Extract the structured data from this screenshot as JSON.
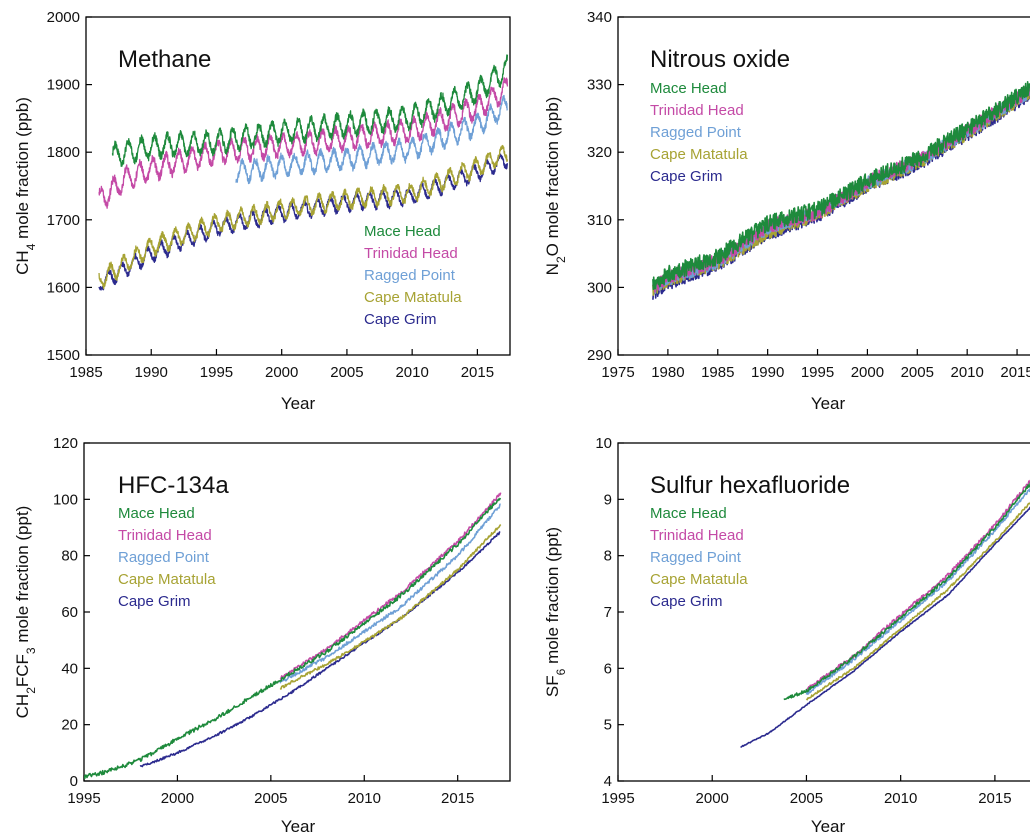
{
  "colors": {
    "Mace Head": "#1e8a3c",
    "Trinidad Head": "#c44aa6",
    "Ragged Point": "#6fa0d6",
    "Cape Matatula": "#a7a334",
    "Cape Grim": "#2b2a8e"
  },
  "chart_data": [
    {
      "type": "line",
      "title": "Methane",
      "xlabel": "Year",
      "ylabel": "CH4 mole fraction (ppb)",
      "ylabel_base": "CH",
      "ylabel_sub": "4",
      "ylabel_rest": " mole fraction (ppb)",
      "xlim": [
        1985,
        2017.5
      ],
      "ylim": [
        1500,
        2000
      ],
      "xticks": [
        1985,
        1990,
        1995,
        2000,
        2005,
        2010,
        2015
      ],
      "yticks": [
        1500,
        1600,
        1700,
        1800,
        1900,
        2000
      ],
      "grid": false,
      "legend": "lower-right",
      "seasonal": true,
      "series": [
        {
          "name": "Mace Head",
          "x": [
            1987.0,
            1990.0,
            1995.0,
            2000.0,
            2005.0,
            2010.0,
            2015.0,
            2017.3
          ],
          "values": [
            1795,
            1808,
            1815,
            1830,
            1840,
            1852,
            1890,
            1925
          ],
          "amp": 15
        },
        {
          "name": "Trinidad Head",
          "x": [
            1986.0,
            1988.0,
            1990.0,
            1995.0,
            2000.0,
            2005.0,
            2010.0,
            2015.0,
            2017.3
          ],
          "values": [
            1728,
            1760,
            1775,
            1800,
            1810,
            1820,
            1832,
            1865,
            1895
          ],
          "amp": 15
        },
        {
          "name": "Ragged Point",
          "x": [
            1996.5,
            2000.0,
            2005.0,
            2010.0,
            2015.0,
            2017.3
          ],
          "values": [
            1770,
            1780,
            1790,
            1805,
            1840,
            1870
          ],
          "amp": 14
        },
        {
          "name": "Cape Matatula",
          "x": [
            1986.0,
            1990.0,
            1995.0,
            2000.0,
            2005.0,
            2010.0,
            2015.0,
            2017.3
          ],
          "values": [
            1610,
            1660,
            1695,
            1715,
            1730,
            1740,
            1778,
            1800
          ],
          "amp": 12
        },
        {
          "name": "Cape Grim",
          "x": [
            1986.0,
            1990.0,
            1995.0,
            2000.0,
            2005.0,
            2010.0,
            2015.0,
            2017.3
          ],
          "values": [
            1605,
            1650,
            1688,
            1710,
            1725,
            1735,
            1770,
            1790
          ],
          "amp": 11
        }
      ]
    },
    {
      "type": "line",
      "title": "Nitrous oxide",
      "xlabel": "Year",
      "ylabel": "N2O mole fraction (ppb)",
      "ylabel_base": "N",
      "ylabel_sub": "2",
      "ylabel_rest": "O mole fraction (ppb)",
      "xlim": [
        1975,
        2017.5
      ],
      "ylim": [
        290,
        340
      ],
      "xticks": [
        1975,
        1980,
        1985,
        1990,
        1995,
        2000,
        2005,
        2010,
        2015
      ],
      "yticks": [
        290,
        300,
        310,
        320,
        330,
        340
      ],
      "grid": false,
      "legend": "top-left",
      "seasonal": false,
      "series": [
        {
          "name": "Mace Head",
          "x": [
            1978.5,
            1980.0,
            1985.0,
            1990.0,
            1995.0,
            2000.0,
            2005.0,
            2010.0,
            2015.0,
            2017.3
          ],
          "values": [
            300.5,
            302.0,
            304.5,
            309.5,
            311.5,
            315.8,
            319.0,
            323.4,
            328.2,
            330.5
          ],
          "amp": 1.2
        },
        {
          "name": "Trinidad Head",
          "x": [
            1978.5,
            1980.0,
            1985.0,
            1990.0,
            1995.0,
            2000.0,
            2005.0,
            2010.0,
            2015.0,
            2017.3
          ],
          "values": [
            300.0,
            301.5,
            304.0,
            309.0,
            311.0,
            315.6,
            318.8,
            323.2,
            328.0,
            330.2
          ],
          "amp": 1.0
        },
        {
          "name": "Ragged Point",
          "x": [
            1978.5,
            1980.0,
            1985.0,
            1990.0,
            1995.0,
            2000.0,
            2005.0,
            2010.0,
            2015.0,
            2017.3
          ],
          "values": [
            299.8,
            301.2,
            303.8,
            308.8,
            311.2,
            315.4,
            318.6,
            323.0,
            327.8,
            330.0
          ],
          "amp": 1.0
        },
        {
          "name": "Cape Matatula",
          "x": [
            1978.5,
            1980.0,
            1985.0,
            1990.0,
            1995.0,
            2000.0,
            2005.0,
            2010.0,
            2015.0,
            2017.3
          ],
          "values": [
            299.5,
            301.0,
            303.5,
            308.0,
            310.8,
            315.0,
            318.3,
            322.7,
            327.5,
            329.7
          ],
          "amp": 0.9
        },
        {
          "name": "Cape Grim",
          "x": [
            1978.5,
            1980.0,
            1985.0,
            1990.0,
            1995.0,
            2000.0,
            2005.0,
            2010.0,
            2015.0,
            2017.3
          ],
          "values": [
            299.0,
            300.5,
            303.2,
            307.8,
            310.5,
            314.8,
            318.0,
            322.5,
            327.2,
            329.3
          ],
          "amp": 0.9
        }
      ]
    },
    {
      "type": "line",
      "title": "HFC-134a",
      "xlabel": "Year",
      "ylabel": "CH2FCF3 mole fraction (ppt)",
      "ylabel_base": "CH",
      "ylabel_sub": "2",
      "ylabel_rest": "FCF",
      "ylabel_sub2": "3",
      "ylabel_rest2": " mole fraction (ppt)",
      "xlim": [
        1995,
        2017.8
      ],
      "ylim": [
        0,
        120
      ],
      "xticks": [
        1995,
        2000,
        2005,
        2010,
        2015
      ],
      "yticks": [
        0,
        20,
        40,
        60,
        80,
        100,
        120
      ],
      "grid": false,
      "legend": "top-left",
      "seasonal": false,
      "series": [
        {
          "name": "Mace Head",
          "x": [
            1995.0,
            1996.0,
            1997.0,
            1998.0,
            1999.0,
            2000.0,
            2002.0,
            2004.0,
            2005.5,
            2008.0,
            2010.0,
            2012.0,
            2015.0,
            2017.3
          ],
          "values": [
            1.5,
            3.0,
            5.0,
            7.5,
            11.0,
            15.0,
            22.0,
            30.0,
            36.0,
            46.0,
            56.0,
            66.0,
            84.0,
            101.0
          ],
          "amp": 0.7
        },
        {
          "name": "Trinidad Head",
          "x": [
            2005.5,
            2008.0,
            2010.0,
            2012.0,
            2015.0,
            2017.3
          ],
          "values": [
            36.5,
            47.0,
            57.0,
            67.0,
            85.0,
            102.0
          ],
          "amp": 0.6
        },
        {
          "name": "Ragged Point",
          "x": [
            2005.5,
            2008.0,
            2010.0,
            2012.0,
            2015.0,
            2017.3
          ],
          "values": [
            35.0,
            44.0,
            53.0,
            62.0,
            80.0,
            98.0
          ],
          "amp": 0.6
        },
        {
          "name": "Cape Matatula",
          "x": [
            2005.5,
            2008.0,
            2010.0,
            2012.0,
            2015.0,
            2017.3
          ],
          "values": [
            33.0,
            41.5,
            49.5,
            58.0,
            75.0,
            91.0
          ],
          "amp": 0.5
        },
        {
          "name": "Cape Grim",
          "x": [
            1998.0,
            2000.0,
            2002.0,
            2004.0,
            2006.0,
            2008.0,
            2010.0,
            2012.0,
            2015.0,
            2017.3
          ],
          "values": [
            5.0,
            10.0,
            16.0,
            23.0,
            31.0,
            40.0,
            49.0,
            58.0,
            74.0,
            88.5
          ],
          "amp": 0.4
        }
      ]
    },
    {
      "type": "line",
      "title": "Sulfur hexafluoride",
      "xlabel": "Year",
      "ylabel": "SF6 mole fraction (ppt)",
      "ylabel_base": "SF",
      "ylabel_sub": "6",
      "ylabel_rest": " mole fraction (ppt)",
      "xlim": [
        1995,
        2017.5
      ],
      "ylim": [
        4,
        10
      ],
      "xticks": [
        1995,
        2000,
        2005,
        2010,
        2015
      ],
      "yticks": [
        4,
        5,
        6,
        7,
        8,
        9,
        10
      ],
      "grid": false,
      "legend": "top-left",
      "seasonal": false,
      "series": [
        {
          "name": "Mace Head",
          "x": [
            2003.8,
            2005.0,
            2007.5,
            2010.0,
            2012.5,
            2015.0,
            2017.3
          ],
          "values": [
            5.45,
            5.6,
            6.2,
            6.9,
            7.6,
            8.5,
            9.45
          ],
          "amp": 0.03
        },
        {
          "name": "Trinidad Head",
          "x": [
            2005.0,
            2007.5,
            2010.0,
            2012.5,
            2015.0,
            2017.3
          ],
          "values": [
            5.62,
            6.22,
            6.95,
            7.65,
            8.55,
            9.5
          ],
          "amp": 0.03
        },
        {
          "name": "Ragged Point",
          "x": [
            2005.0,
            2007.5,
            2010.0,
            2012.5,
            2015.0,
            2017.3
          ],
          "values": [
            5.55,
            6.15,
            6.85,
            7.55,
            8.45,
            9.35
          ],
          "amp": 0.03
        },
        {
          "name": "Cape Matatula",
          "x": [
            2005.0,
            2007.5,
            2010.0,
            2012.5,
            2015.0,
            2017.3
          ],
          "values": [
            5.45,
            6.0,
            6.7,
            7.4,
            8.25,
            9.1
          ],
          "amp": 0.02
        },
        {
          "name": "Cape Grim",
          "x": [
            2001.5,
            2003.0,
            2005.0,
            2007.5,
            2010.0,
            2012.5,
            2015.0,
            2017.3
          ],
          "values": [
            4.6,
            4.85,
            5.35,
            5.95,
            6.65,
            7.3,
            8.2,
            9.0
          ],
          "amp": 0.01
        }
      ]
    }
  ]
}
